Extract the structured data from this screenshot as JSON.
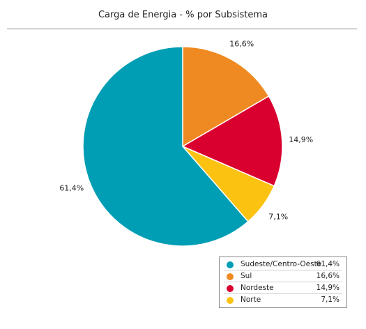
{
  "chart_data": {
    "type": "pie",
    "title": "Carga de Energia - % por Subsistema",
    "slices": [
      {
        "name": "Sul",
        "value": 16.6,
        "label": "16,6%",
        "color": "#ef8a22"
      },
      {
        "name": "Nordeste",
        "value": 14.9,
        "label": "14,9%",
        "color": "#d90030"
      },
      {
        "name": "Norte",
        "value": 7.1,
        "label": "7,1%",
        "color": "#fcc211"
      },
      {
        "name": "Sudeste/Centro-Oeste",
        "value": 61.4,
        "label": "61,4%",
        "color": "#009eb4"
      }
    ],
    "legend": [
      {
        "name": "Sudeste/Centro-Oeste",
        "value": "61,4%",
        "color": "#009eb4"
      },
      {
        "name": "Sul",
        "value": "16,6%",
        "color": "#ef8a22"
      },
      {
        "name": "Nordeste",
        "value": "14,9%",
        "color": "#d90030"
      },
      {
        "name": "Norte",
        "value": "7,1%",
        "color": "#fcc211"
      }
    ],
    "legend_position": "bottom-right"
  }
}
